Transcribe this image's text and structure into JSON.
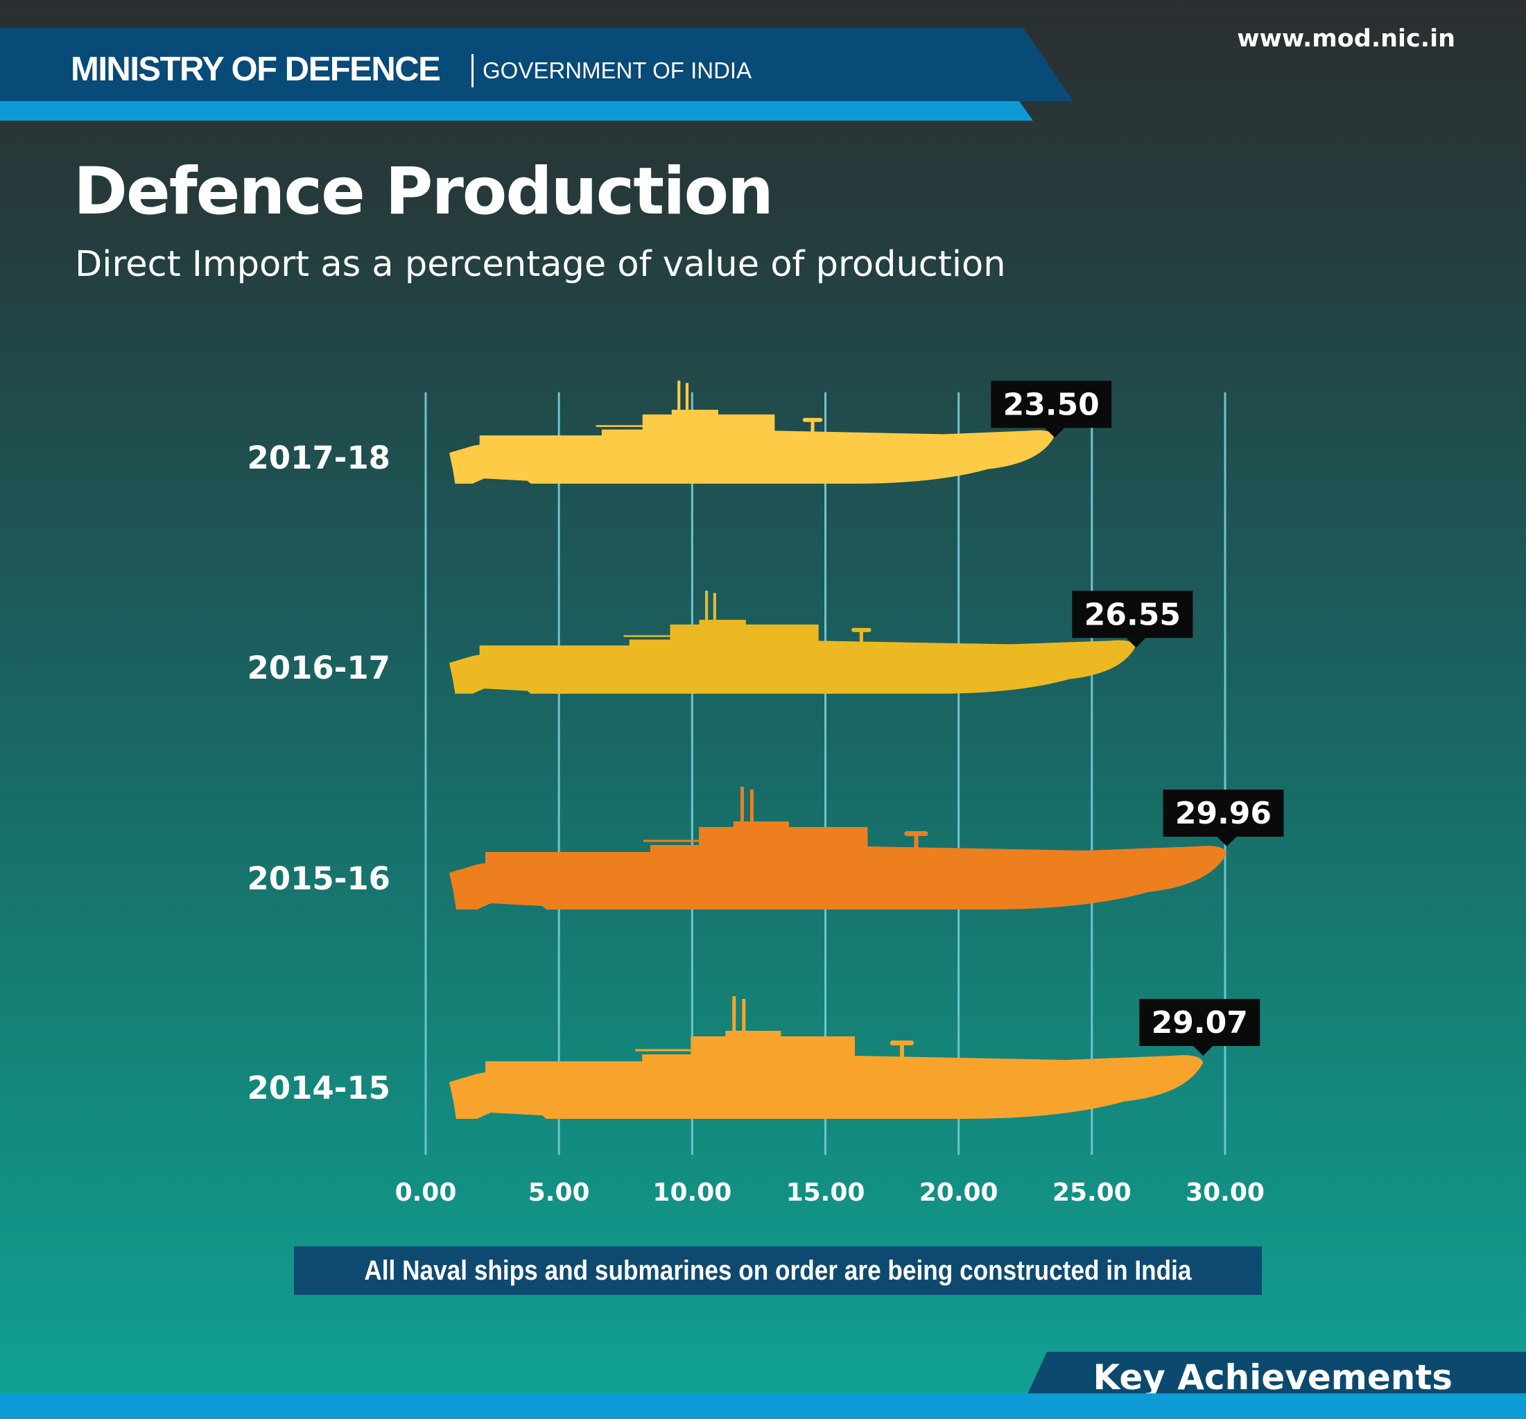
{
  "header": {
    "org_name": "MINISTRY OF DEFENCE",
    "org_sub": "GOVERNMENT OF INDIA",
    "url": "www.mod.nic.in",
    "banner_color": "#084a78",
    "strip_color": "#0d9bd6"
  },
  "title": "Defence Production",
  "subtitle": "Direct Import as a percentage of value of production",
  "chart_data": {
    "type": "bar",
    "orientation": "horizontal",
    "mark": "submarine-silhouette",
    "categories": [
      "2017-18",
      "2016-17",
      "2015-16",
      "2014-15"
    ],
    "values": [
      23.5,
      26.55,
      29.96,
      29.07
    ],
    "value_labels": [
      "23.50",
      "26.55",
      "29.96",
      "29.07"
    ],
    "bar_colors": [
      "#fdcb45",
      "#edb922",
      "#ed7f1e",
      "#f8a42c"
    ],
    "x_ticks": [
      "0.00",
      "5.00",
      "10.00",
      "15.00",
      "20.00",
      "25.00",
      "30.00"
    ],
    "xlim": [
      0,
      30
    ],
    "grid": "vertical",
    "gridline_color": "#6fc3d2"
  },
  "footnote": "All Naval ships and submarines on order are being constructed in India",
  "footer": {
    "label": "Key Achievements"
  }
}
